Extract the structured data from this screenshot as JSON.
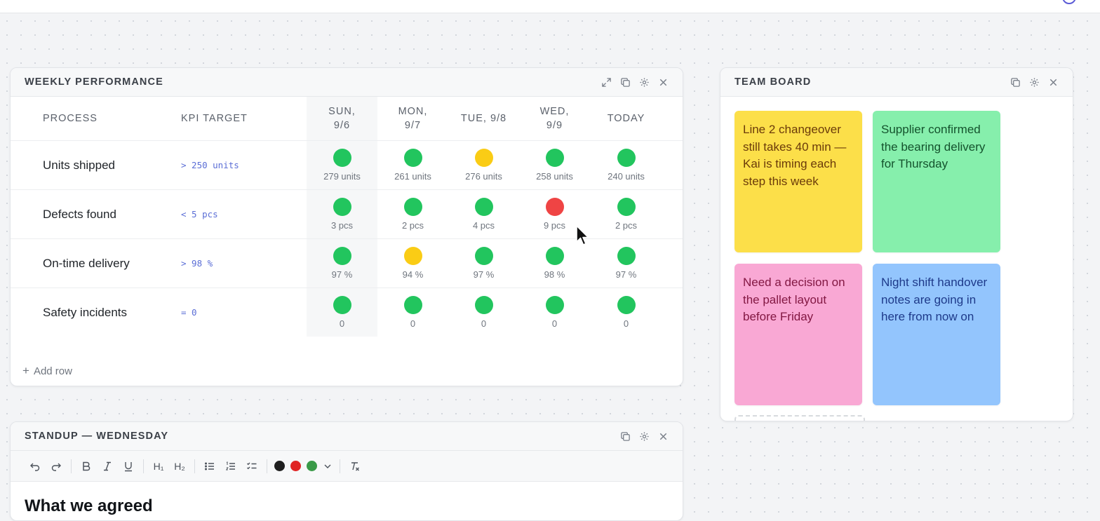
{
  "colors": {
    "good": "#22c55e",
    "warn": "#facc15",
    "bad": "#ef4444"
  },
  "kpi_widget": {
    "title": "WEEKLY PERFORMANCE",
    "icons": [
      "expand-icon",
      "duplicate-icon",
      "settings-icon",
      "close-icon"
    ],
    "columns": {
      "process": "PROCESS",
      "target": "KPI TARGET",
      "days": [
        "SUN, 9/6",
        "MON, 9/7",
        "TUE, 9/8",
        "WED, 9/9",
        "TODAY"
      ]
    },
    "rows": [
      {
        "process": "Units shipped",
        "target": "> 250 units",
        "cells": [
          {
            "status": "good",
            "value": "279 units"
          },
          {
            "status": "good",
            "value": "261 units"
          },
          {
            "status": "warn",
            "value": "276 units"
          },
          {
            "status": "good",
            "value": "258 units"
          },
          {
            "status": "good",
            "value": "240 units"
          }
        ]
      },
      {
        "process": "Defects found",
        "target": "< 5 pcs",
        "cells": [
          {
            "status": "good",
            "value": "3 pcs"
          },
          {
            "status": "good",
            "value": "2 pcs"
          },
          {
            "status": "good",
            "value": "4 pcs"
          },
          {
            "status": "bad",
            "value": "9 pcs"
          },
          {
            "status": "good",
            "value": "2 pcs"
          }
        ]
      },
      {
        "process": "On-time delivery",
        "target": "> 98 %",
        "cells": [
          {
            "status": "good",
            "value": "97 %"
          },
          {
            "status": "warn",
            "value": "94 %"
          },
          {
            "status": "good",
            "value": "97 %"
          },
          {
            "status": "good",
            "value": "98 %"
          },
          {
            "status": "good",
            "value": "97 %"
          }
        ]
      },
      {
        "process": "Safety incidents",
        "target": "= 0",
        "cells": [
          {
            "status": "good",
            "value": "0"
          },
          {
            "status": "good",
            "value": "0"
          },
          {
            "status": "good",
            "value": "0"
          },
          {
            "status": "good",
            "value": "0"
          },
          {
            "status": "good",
            "value": "0"
          }
        ]
      }
    ],
    "add_row_label": "Add row"
  },
  "team_board": {
    "title": "TEAM BOARD",
    "icons": [
      "duplicate-icon",
      "settings-icon",
      "close-icon"
    ],
    "notes": [
      {
        "text": "Line 2 changeover still takes 40 min — Kai is timing each step this week",
        "bg": "#fcdf49",
        "fg": "#6b3b0a"
      },
      {
        "text": "Supplier confirmed the bearing delivery for Thursday",
        "bg": "#86efac",
        "fg": "#14532d"
      },
      {
        "text": "Need a decision on the pallet layout before Friday",
        "bg": "#f9a8d4",
        "fg": "#831843"
      },
      {
        "text": "Night shift handover notes are going in here from now on",
        "bg": "#93c5fd",
        "fg": "#1e3a8a"
      }
    ]
  },
  "standup_widget": {
    "title": "STANDUP — WEDNESDAY",
    "icons": [
      "duplicate-icon",
      "settings-icon",
      "close-icon"
    ],
    "toolbar": {
      "heading1_label": "H₁",
      "heading2_label": "H₂",
      "swatches": [
        "#1f1f1f",
        "#e02424",
        "#3a9a48"
      ]
    },
    "heading": "What we agreed"
  }
}
